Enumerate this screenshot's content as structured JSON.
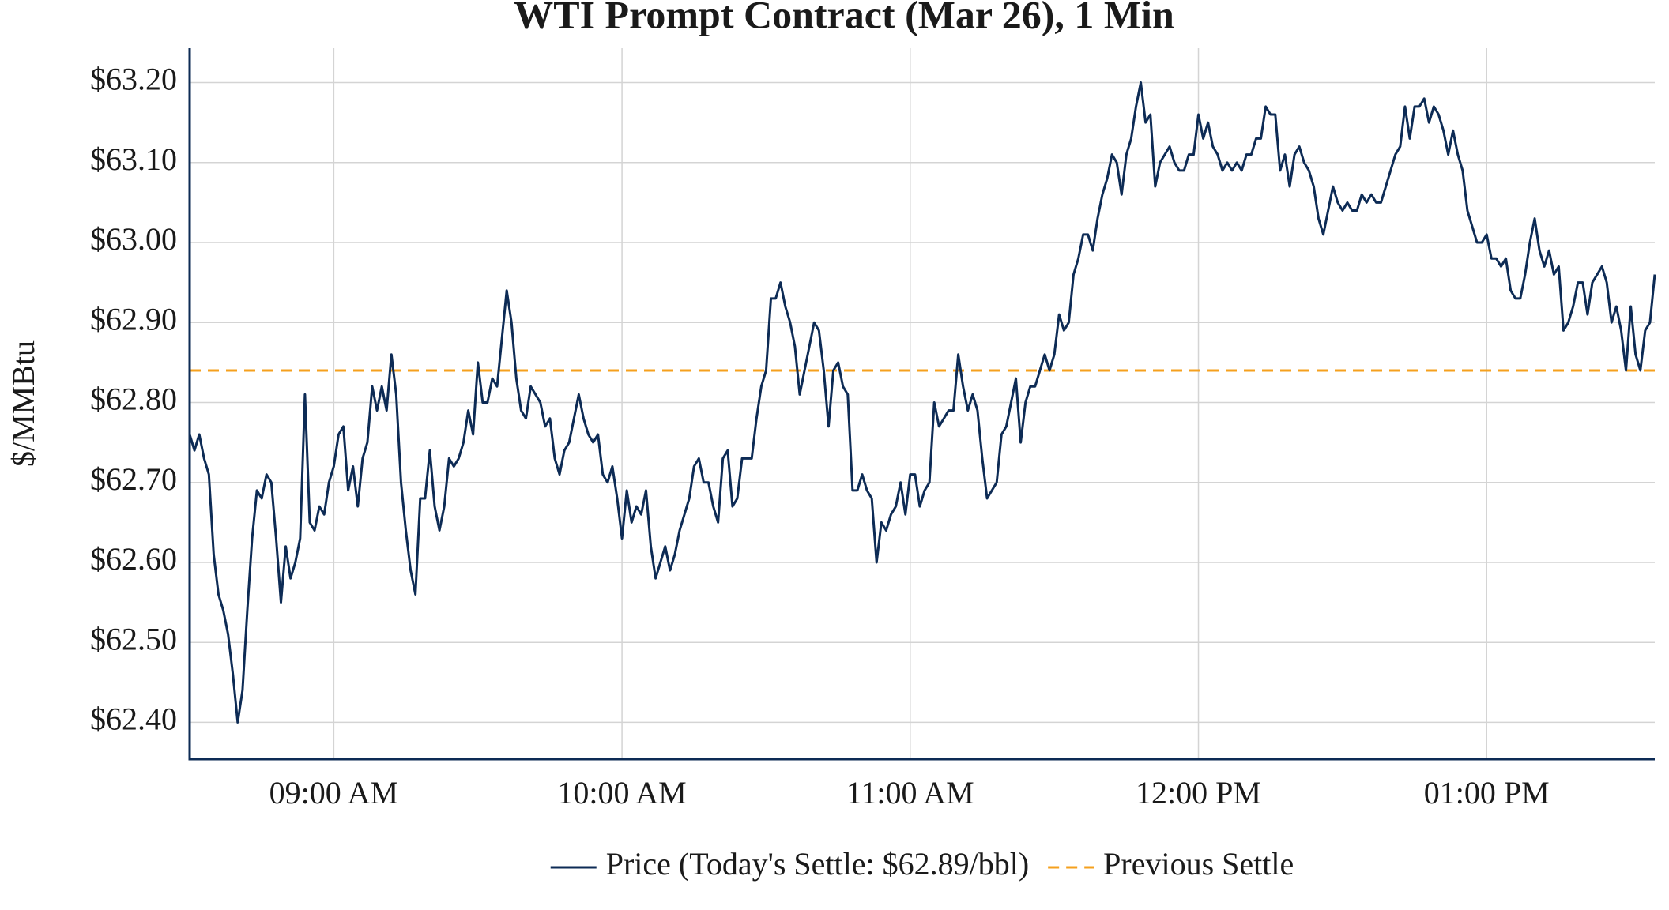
{
  "chart_data": {
    "type": "line",
    "title": "WTI Prompt Contract (Mar 26), 1 Min",
    "y_label": "$/MMBtu",
    "grid": true,
    "legend": "bottom",
    "x": [
      "08:30",
      "08:31",
      "08:32",
      "08:33",
      "08:34",
      "08:35",
      "08:36",
      "08:37",
      "08:38",
      "08:39",
      "08:40",
      "08:41",
      "08:42",
      "08:43",
      "08:44",
      "08:45",
      "08:46",
      "08:47",
      "08:48",
      "08:49",
      "08:50",
      "08:51",
      "08:52",
      "08:53",
      "08:54",
      "08:55",
      "08:56",
      "08:57",
      "08:58",
      "08:59",
      "09:00",
      "09:01",
      "09:02",
      "09:03",
      "09:04",
      "09:05",
      "09:06",
      "09:07",
      "09:08",
      "09:09",
      "09:10",
      "09:11",
      "09:12",
      "09:13",
      "09:14",
      "09:15",
      "09:16",
      "09:17",
      "09:18",
      "09:19",
      "09:20",
      "09:21",
      "09:22",
      "09:23",
      "09:24",
      "09:25",
      "09:26",
      "09:27",
      "09:28",
      "09:29",
      "09:30",
      "09:31",
      "09:32",
      "09:33",
      "09:34",
      "09:35",
      "09:36",
      "09:37",
      "09:38",
      "09:39",
      "09:40",
      "09:41",
      "09:42",
      "09:43",
      "09:44",
      "09:45",
      "09:46",
      "09:47",
      "09:48",
      "09:49",
      "09:50",
      "09:51",
      "09:52",
      "09:53",
      "09:54",
      "09:55",
      "09:56",
      "09:57",
      "09:58",
      "09:59",
      "10:00",
      "10:01",
      "10:02",
      "10:03",
      "10:04",
      "10:05",
      "10:06",
      "10:07",
      "10:08",
      "10:09",
      "10:10",
      "10:11",
      "10:12",
      "10:13",
      "10:14",
      "10:15",
      "10:16",
      "10:17",
      "10:18",
      "10:19",
      "10:20",
      "10:21",
      "10:22",
      "10:23",
      "10:24",
      "10:25",
      "10:26",
      "10:27",
      "10:28",
      "10:29",
      "10:30",
      "10:31",
      "10:32",
      "10:33",
      "10:34",
      "10:35",
      "10:36",
      "10:37",
      "10:38",
      "10:39",
      "10:40",
      "10:41",
      "10:42",
      "10:43",
      "10:44",
      "10:45",
      "10:46",
      "10:47",
      "10:48",
      "10:49",
      "10:50",
      "10:51",
      "10:52",
      "10:53",
      "10:54",
      "10:55",
      "10:56",
      "10:57",
      "10:58",
      "10:59",
      "11:00",
      "11:01",
      "11:02",
      "11:03",
      "11:04",
      "11:05",
      "11:06",
      "11:07",
      "11:08",
      "11:09",
      "11:10",
      "11:11",
      "11:12",
      "11:13",
      "11:14",
      "11:15",
      "11:16",
      "11:17",
      "11:18",
      "11:19",
      "11:20",
      "11:21",
      "11:22",
      "11:23",
      "11:24",
      "11:25",
      "11:26",
      "11:27",
      "11:28",
      "11:29",
      "11:30",
      "11:31",
      "11:32",
      "11:33",
      "11:34",
      "11:35",
      "11:36",
      "11:37",
      "11:38",
      "11:39",
      "11:40",
      "11:41",
      "11:42",
      "11:43",
      "11:44",
      "11:45",
      "11:46",
      "11:47",
      "11:48",
      "11:49",
      "11:50",
      "11:51",
      "11:52",
      "11:53",
      "11:54",
      "11:55",
      "11:56",
      "11:57",
      "11:58",
      "11:59",
      "12:00",
      "12:01",
      "12:02",
      "12:03",
      "12:04",
      "12:05",
      "12:06",
      "12:07",
      "12:08",
      "12:09",
      "12:10",
      "12:11",
      "12:12",
      "12:13",
      "12:14",
      "12:15",
      "12:16",
      "12:17",
      "12:18",
      "12:19",
      "12:20",
      "12:21",
      "12:22",
      "12:23",
      "12:24",
      "12:25",
      "12:26",
      "12:27",
      "12:28",
      "12:29",
      "12:30",
      "12:31",
      "12:32",
      "12:33",
      "12:34",
      "12:35",
      "12:36",
      "12:37",
      "12:38",
      "12:39",
      "12:40",
      "12:41",
      "12:42",
      "12:43",
      "12:44",
      "12:45",
      "12:46",
      "12:47",
      "12:48",
      "12:49",
      "12:50",
      "12:51",
      "12:52",
      "12:53",
      "12:54",
      "12:55",
      "12:56",
      "12:57",
      "12:58",
      "12:59",
      "13:00",
      "13:01",
      "13:02",
      "13:03",
      "13:04",
      "13:05",
      "13:06",
      "13:07",
      "13:08",
      "13:09",
      "13:10",
      "13:11",
      "13:12",
      "13:13",
      "13:14",
      "13:15",
      "13:16",
      "13:17",
      "13:18",
      "13:19",
      "13:20",
      "13:21",
      "13:22",
      "13:23",
      "13:24",
      "13:25",
      "13:26",
      "13:27",
      "13:28",
      "13:29",
      "13:30",
      "13:31",
      "13:32",
      "13:33",
      "13:34",
      "13:35"
    ],
    "series": [
      {
        "name": "Price (Today's Settle: $62.89/bbl)",
        "color": "#0d2b55",
        "values": [
          62.76,
          62.74,
          62.76,
          62.73,
          62.71,
          62.61,
          62.56,
          62.54,
          62.51,
          62.46,
          62.4,
          62.44,
          62.54,
          62.63,
          62.69,
          62.68,
          62.71,
          62.7,
          62.63,
          62.55,
          62.62,
          62.58,
          62.6,
          62.63,
          62.81,
          62.65,
          62.64,
          62.67,
          62.66,
          62.7,
          62.72,
          62.76,
          62.77,
          62.69,
          62.72,
          62.67,
          62.73,
          62.75,
          62.82,
          62.79,
          62.82,
          62.79,
          62.86,
          62.81,
          62.7,
          62.64,
          62.59,
          62.56,
          62.68,
          62.68,
          62.74,
          62.67,
          62.64,
          62.67,
          62.73,
          62.72,
          62.73,
          62.75,
          62.79,
          62.76,
          62.85,
          62.8,
          62.8,
          62.83,
          62.82,
          62.88,
          62.94,
          62.9,
          62.83,
          62.79,
          62.78,
          62.82,
          62.81,
          62.8,
          62.77,
          62.78,
          62.73,
          62.71,
          62.74,
          62.75,
          62.78,
          62.81,
          62.78,
          62.76,
          62.75,
          62.76,
          62.71,
          62.7,
          62.72,
          62.68,
          62.63,
          62.69,
          62.65,
          62.67,
          62.66,
          62.69,
          62.62,
          62.58,
          62.6,
          62.62,
          62.59,
          62.61,
          62.64,
          62.66,
          62.68,
          62.72,
          62.73,
          62.7,
          62.7,
          62.67,
          62.65,
          62.73,
          62.74,
          62.67,
          62.68,
          62.73,
          62.73,
          62.73,
          62.78,
          62.82,
          62.84,
          62.93,
          62.93,
          62.95,
          62.92,
          62.9,
          62.87,
          62.81,
          62.84,
          62.87,
          62.9,
          62.89,
          62.84,
          62.77,
          62.84,
          62.85,
          62.82,
          62.81,
          62.69,
          62.69,
          62.71,
          62.69,
          62.68,
          62.6,
          62.65,
          62.64,
          62.66,
          62.67,
          62.7,
          62.66,
          62.71,
          62.71,
          62.67,
          62.69,
          62.7,
          62.8,
          62.77,
          62.78,
          62.79,
          62.79,
          62.86,
          62.82,
          62.79,
          62.81,
          62.79,
          62.73,
          62.68,
          62.69,
          62.7,
          62.76,
          62.77,
          62.8,
          62.83,
          62.75,
          62.8,
          62.82,
          62.82,
          62.84,
          62.86,
          62.84,
          62.86,
          62.91,
          62.89,
          62.9,
          62.96,
          62.98,
          63.01,
          63.01,
          62.99,
          63.03,
          63.06,
          63.08,
          63.11,
          63.1,
          63.06,
          63.11,
          63.13,
          63.17,
          63.2,
          63.15,
          63.16,
          63.07,
          63.1,
          63.11,
          63.12,
          63.1,
          63.09,
          63.09,
          63.11,
          63.11,
          63.16,
          63.13,
          63.15,
          63.12,
          63.11,
          63.09,
          63.1,
          63.09,
          63.1,
          63.09,
          63.11,
          63.11,
          63.13,
          63.13,
          63.17,
          63.16,
          63.16,
          63.09,
          63.11,
          63.07,
          63.11,
          63.12,
          63.1,
          63.09,
          63.07,
          63.03,
          63.01,
          63.04,
          63.07,
          63.05,
          63.04,
          63.05,
          63.04,
          63.04,
          63.06,
          63.05,
          63.06,
          63.05,
          63.05,
          63.07,
          63.09,
          63.11,
          63.12,
          63.17,
          63.13,
          63.17,
          63.17,
          63.18,
          63.15,
          63.17,
          63.16,
          63.14,
          63.11,
          63.14,
          63.11,
          63.09,
          63.04,
          63.02,
          63.0,
          63.0,
          63.01,
          62.98,
          62.98,
          62.97,
          62.98,
          62.94,
          62.93,
          62.93,
          62.96,
          63.0,
          63.03,
          62.99,
          62.97,
          62.99,
          62.96,
          62.97,
          62.89,
          62.9,
          62.92,
          62.95,
          62.95,
          62.91,
          62.95,
          62.96,
          62.97,
          62.95,
          62.9,
          62.92,
          62.89,
          62.84,
          62.92,
          62.86,
          62.84,
          62.89,
          62.9,
          62.96
        ]
      }
    ],
    "reference_lines": [
      {
        "name": "Previous Settle",
        "value": 62.84,
        "color": "#f5a01e",
        "dash": true
      }
    ],
    "xlim": [
      "08:30",
      "13:35"
    ],
    "xticks": [
      {
        "value": "09:00",
        "label": "09:00 AM"
      },
      {
        "value": "10:00",
        "label": "10:00 AM"
      },
      {
        "value": "11:00",
        "label": "11:00 AM"
      },
      {
        "value": "12:00",
        "label": "12:00 PM"
      },
      {
        "value": "13:00",
        "label": "01:00 PM"
      }
    ],
    "ylim": [
      62.354,
      63.243
    ],
    "yticks": [
      {
        "value": 62.4,
        "label": "$62.40"
      },
      {
        "value": 62.5,
        "label": "$62.50"
      },
      {
        "value": 62.6,
        "label": "$62.60"
      },
      {
        "value": 62.7,
        "label": "$62.70"
      },
      {
        "value": 62.8,
        "label": "$62.80"
      },
      {
        "value": 62.9,
        "label": "$62.90"
      },
      {
        "value": 63.0,
        "label": "$63.00"
      },
      {
        "value": 63.1,
        "label": "$63.10"
      },
      {
        "value": 63.2,
        "label": "$63.20"
      }
    ]
  }
}
